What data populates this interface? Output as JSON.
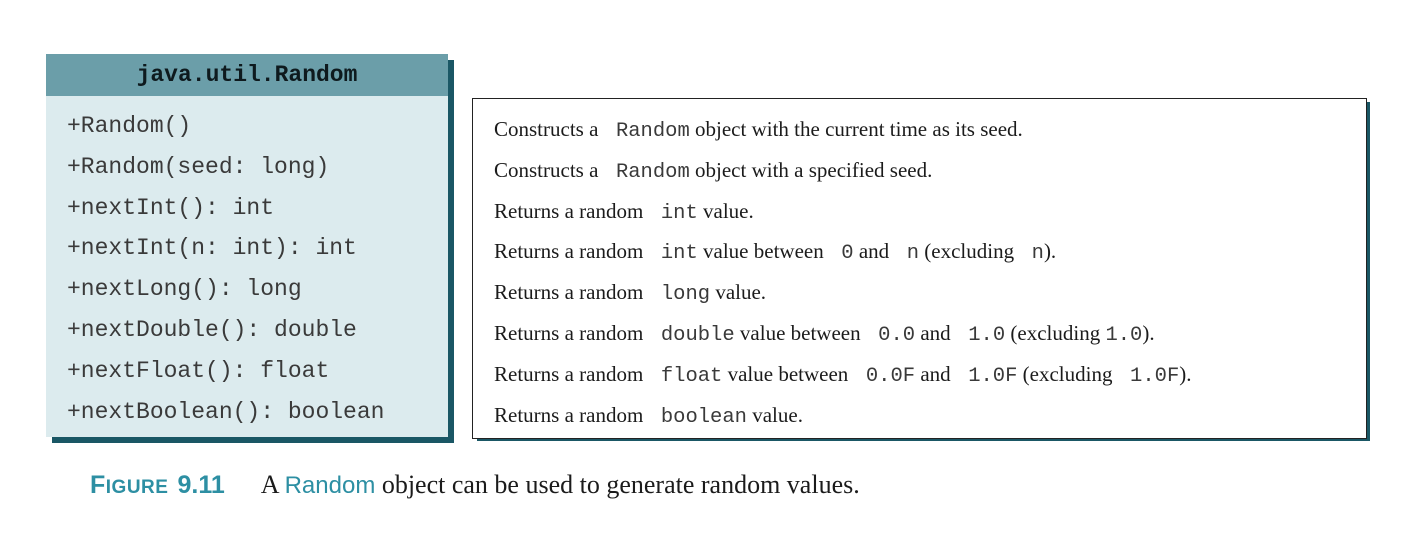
{
  "uml": {
    "class_name": "java.util.Random",
    "methods": [
      "+Random()",
      "+Random(seed: long)",
      "+nextInt(): int",
      "+nextInt(n: int): int",
      "+nextLong(): long",
      "+nextDouble(): double",
      "+nextFloat(): float",
      "+nextBoolean(): boolean"
    ]
  },
  "descriptions": [
    [
      {
        "t": "Constructs a "
      },
      {
        "t": " Random",
        "code": true
      },
      {
        "t": " object with the current time as its seed."
      }
    ],
    [
      {
        "t": "Constructs a "
      },
      {
        "t": " Random",
        "code": true
      },
      {
        "t": " object with a specified seed."
      }
    ],
    [
      {
        "t": "Returns a random "
      },
      {
        "t": " int",
        "code": true
      },
      {
        "t": " value."
      }
    ],
    [
      {
        "t": "Returns a random "
      },
      {
        "t": " int",
        "code": true
      },
      {
        "t": " value between "
      },
      {
        "t": " 0",
        "code": true
      },
      {
        "t": " and "
      },
      {
        "t": " n",
        "code": true
      },
      {
        "t": " (excluding "
      },
      {
        "t": " n",
        "code": true
      },
      {
        "t": ")."
      }
    ],
    [
      {
        "t": "Returns a random "
      },
      {
        "t": " long",
        "code": true
      },
      {
        "t": " value."
      }
    ],
    [
      {
        "t": "Returns a random "
      },
      {
        "t": " double",
        "code": true
      },
      {
        "t": " value between "
      },
      {
        "t": " 0.0",
        "code": true
      },
      {
        "t": " and "
      },
      {
        "t": " 1.0",
        "code": true
      },
      {
        "t": " (excluding "
      },
      {
        "t": "1.0",
        "code": true
      },
      {
        "t": ")."
      }
    ],
    [
      {
        "t": "Returns a random "
      },
      {
        "t": " float",
        "code": true
      },
      {
        "t": " value between "
      },
      {
        "t": " 0.0F",
        "code": true
      },
      {
        "t": " and "
      },
      {
        "t": " 1.0F",
        "code": true
      },
      {
        "t": " (excluding "
      },
      {
        "t": " 1.0F",
        "code": true
      },
      {
        "t": ")."
      }
    ],
    [
      {
        "t": "Returns a random "
      },
      {
        "t": " boolean",
        "code": true
      },
      {
        "t": " value."
      }
    ]
  ],
  "caption": {
    "label_first": "F",
    "label_rest": "IGURE",
    "number": "9.11",
    "text_before": "A ",
    "code": "Random",
    "text_after": " object can be used to generate random values."
  },
  "colors": {
    "header_bg": "#6b9ea9",
    "box_bg": "#dcebee",
    "shadow": "#1a5765",
    "accent": "#2d8fa3"
  }
}
